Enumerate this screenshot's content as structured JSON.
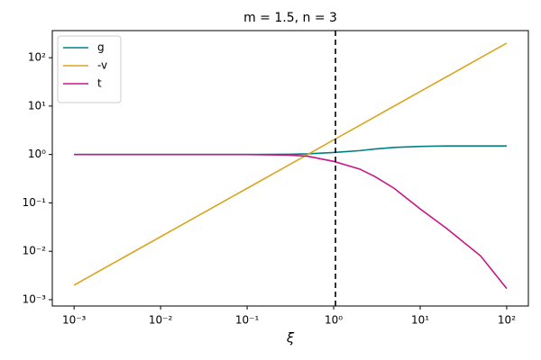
{
  "chart_data": {
    "type": "line",
    "title": "m = 1.5, n = 3",
    "x_label": "ξ",
    "x": [
      0.001,
      0.01,
      0.1,
      0.3,
      0.5,
      1,
      2,
      3,
      5,
      10,
      20,
      50,
      100
    ],
    "series": [
      {
        "name": "g",
        "color": "#008080",
        "values": [
          1,
          1,
          1,
          1.01,
          1.03,
          1.1,
          1.2,
          1.3,
          1.4,
          1.47,
          1.5,
          1.5,
          1.5
        ]
      },
      {
        "name": "-v",
        "color": "#daa520",
        "values": [
          0.002,
          0.02,
          0.2,
          0.6,
          1,
          2,
          4,
          6,
          10,
          20,
          40,
          100,
          200
        ]
      },
      {
        "name": "t",
        "color": "#c71585",
        "values": [
          1,
          1,
          1,
          0.97,
          0.92,
          0.72,
          0.5,
          0.35,
          0.2,
          0.075,
          0.03,
          0.008,
          0.0017
        ]
      }
    ],
    "vline": 1.05,
    "xscale": "log",
    "yscale": "log",
    "xlim": [
      0.00056,
      178
    ],
    "ylim": [
      0.00074,
      363
    ],
    "xticks": [
      {
        "value": 0.001,
        "label": "10⁻³"
      },
      {
        "value": 0.01,
        "label": "10⁻²"
      },
      {
        "value": 0.1,
        "label": "10⁻¹"
      },
      {
        "value": 1,
        "label": "10⁰"
      },
      {
        "value": 10,
        "label": "10¹"
      },
      {
        "value": 100,
        "label": "10²"
      }
    ],
    "yticks": [
      {
        "value": 0.001,
        "label": "10⁻³"
      },
      {
        "value": 0.01,
        "label": "10⁻²"
      },
      {
        "value": 0.1,
        "label": "10⁻¹"
      },
      {
        "value": 1,
        "label": "10⁰"
      },
      {
        "value": 10,
        "label": "10¹"
      },
      {
        "value": 100,
        "label": "10²"
      }
    ],
    "legend": "upper left",
    "grid": false
  }
}
